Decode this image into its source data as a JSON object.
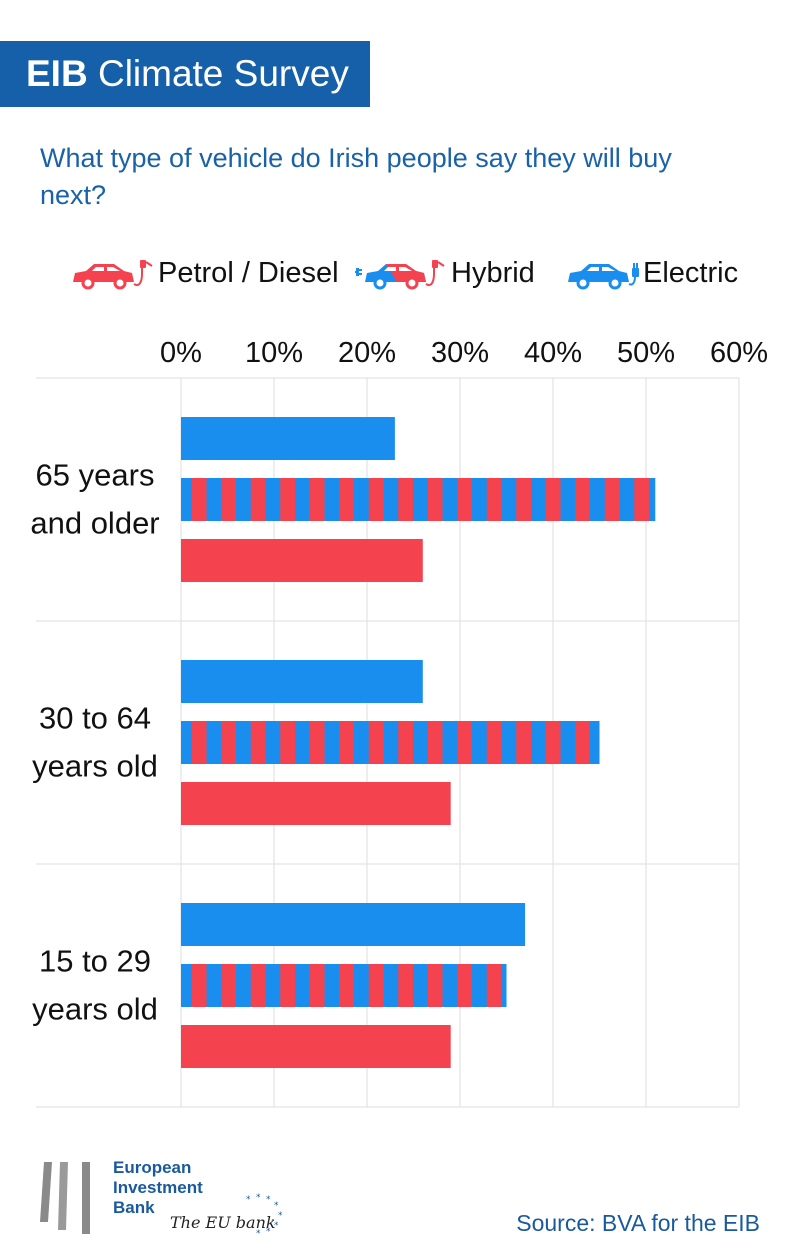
{
  "header": {
    "brand": "EIB",
    "title_rest": "Climate Survey",
    "question": "What type of vehicle do Irish people say they will buy next?"
  },
  "legend": [
    {
      "label": "Petrol / Diesel",
      "icon": "petrol-car-icon"
    },
    {
      "label": "Hybrid",
      "icon": "hybrid-car-icon"
    },
    {
      "label": "Electric",
      "icon": "electric-car-icon"
    }
  ],
  "colors": {
    "petrol": "#f5424f",
    "electric": "#1a8eef",
    "hybrid_red": "#f5424f",
    "hybrid_blue": "#1a8eef",
    "banner": "#1660a9",
    "grid": "#dddddd"
  },
  "chart_data": {
    "type": "bar",
    "orientation": "horizontal",
    "title": "What type of vehicle do Irish people say they will buy next?",
    "xlabel": "",
    "ylabel": "",
    "xlim": [
      0,
      60
    ],
    "xticks": [
      "0%",
      "10%",
      "20%",
      "30%",
      "40%",
      "50%",
      "60%"
    ],
    "categories": [
      [
        "65 years",
        "and older"
      ],
      [
        "30 to 64",
        "years old"
      ],
      [
        "15 to 29",
        "years old"
      ]
    ],
    "series": [
      {
        "name": "Electric",
        "values": [
          23,
          26,
          37
        ]
      },
      {
        "name": "Hybrid",
        "values": [
          51,
          45,
          35
        ]
      },
      {
        "name": "Petrol / Diesel",
        "values": [
          26,
          29,
          29
        ]
      }
    ],
    "grid": true,
    "legend_position": "top"
  },
  "footer": {
    "org_lines": [
      "European",
      "Investment",
      "Bank"
    ],
    "tagline": "The EU bank",
    "source": "Source: BVA for the EIB"
  }
}
